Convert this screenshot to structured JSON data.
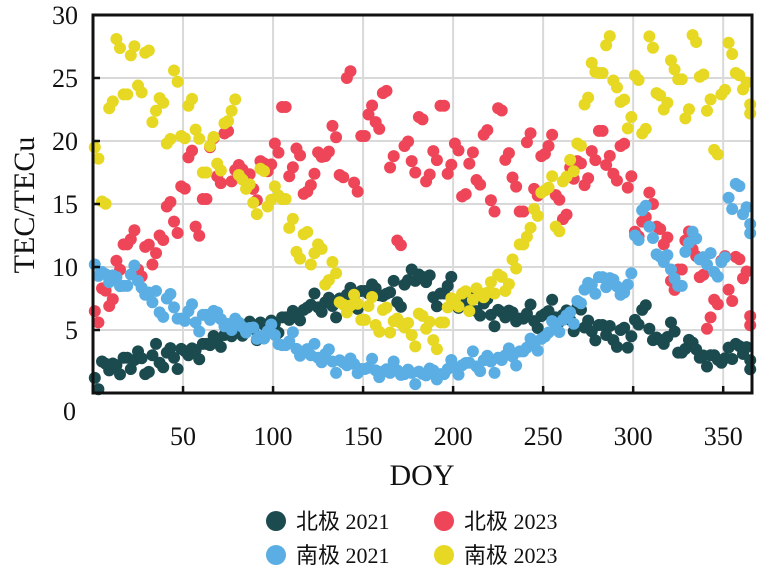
{
  "chart_data": {
    "type": "scatter",
    "title": "",
    "xlabel": "DOY",
    "ylabel": "TEC/TECu",
    "xlim": [
      0,
      366
    ],
    "ylim": [
      0,
      30
    ],
    "xticks": [
      50,
      100,
      150,
      200,
      250,
      300,
      350
    ],
    "yticks": [
      0,
      5,
      10,
      15,
      20,
      25,
      30
    ],
    "grid": true,
    "legend_position": "bottom",
    "x": [
      1,
      5,
      9,
      13,
      17,
      21,
      25,
      29,
      33,
      37,
      41,
      45,
      49,
      53,
      57,
      61,
      65,
      69,
      73,
      77,
      81,
      85,
      89,
      93,
      97,
      101,
      105,
      109,
      113,
      117,
      121,
      125,
      129,
      133,
      137,
      141,
      145,
      149,
      153,
      157,
      161,
      165,
      169,
      173,
      177,
      181,
      185,
      189,
      193,
      197,
      201,
      205,
      209,
      213,
      217,
      221,
      225,
      229,
      233,
      237,
      241,
      245,
      249,
      253,
      257,
      261,
      265,
      269,
      273,
      277,
      281,
      285,
      289,
      293,
      297,
      301,
      305,
      309,
      313,
      317,
      321,
      325,
      329,
      333,
      337,
      341,
      345,
      349,
      353,
      357,
      361,
      365
    ],
    "series": [
      {
        "name": "北极 2021",
        "color": "#1b4a4f",
        "values": [
          1.2,
          2.5,
          1.8,
          2.2,
          2.8,
          1.9,
          3.3,
          1.5,
          3.0,
          2.4,
          3.2,
          2.8,
          3.5,
          3.0,
          3.4,
          3.9,
          3.8,
          4.2,
          4.6,
          4.5,
          4.9,
          5.3,
          5.1,
          5.6,
          5.2,
          5.5,
          6.0,
          5.8,
          6.3,
          6.6,
          7.0,
          6.8,
          7.2,
          6.9,
          7.5,
          7.8,
          7.4,
          8.1,
          7.9,
          8.3,
          7.7,
          8.0,
          7.2,
          8.6,
          9.8,
          9.4,
          8.8,
          7.6,
          7.9,
          8.5,
          7.3,
          7.0,
          6.8,
          6.5,
          7.1,
          6.2,
          6.6,
          6.0,
          6.4,
          5.9,
          6.3,
          5.7,
          6.1,
          6.5,
          6.0,
          6.2,
          5.8,
          6.8,
          5.2,
          4.9,
          5.4,
          4.6,
          4.2,
          5.0,
          3.6,
          5.8,
          6.6,
          5.1,
          4.4,
          3.9,
          5.6,
          3.2,
          3.5,
          4.0,
          2.8,
          2.1,
          3.0,
          2.4,
          3.6,
          3.9,
          3.1,
          2.6
        ]
      },
      {
        "name": "北极 2023",
        "color": "#ee4658",
        "values": [
          6.5,
          8.3,
          6.9,
          10.5,
          11.8,
          12.2,
          9.8,
          11.6,
          10.2,
          12.5,
          14.8,
          13.6,
          16.4,
          18.7,
          13.2,
          15.4,
          19.5,
          17.2,
          20.6,
          16.8,
          18.1,
          17.0,
          16.2,
          18.4,
          17.6,
          19.8,
          22.7,
          17.2,
          19.4,
          15.8,
          16.5,
          19.1,
          18.8,
          21.2,
          17.3,
          25.0,
          16.7,
          20.4,
          22.1,
          21.5,
          23.8,
          17.9,
          12.1,
          19.6,
          18.4,
          21.9,
          16.8,
          19.2,
          22.8,
          17.4,
          19.8,
          15.6,
          18.2,
          16.9,
          20.5,
          15.3,
          22.6,
          18.5,
          17.1,
          14.4,
          19.9,
          16.2,
          18.8,
          19.6,
          15.7,
          13.8,
          17.9,
          18.4,
          16.5,
          19.2,
          20.8,
          18.1,
          17.4,
          19.6,
          16.3,
          12.8,
          13.6,
          15.9,
          13.2,
          11.8,
          8.9,
          9.8,
          12.1,
          11.4,
          9.2,
          5.1,
          7.4,
          10.5,
          8.2,
          10.8,
          9.1,
          6.1
        ]
      },
      {
        "name": "南极 2021",
        "color": "#5aaee3",
        "values": [
          10.2,
          9.6,
          8.8,
          9.2,
          8.5,
          9.4,
          8.9,
          7.8,
          7.2,
          6.4,
          7.5,
          6.8,
          5.9,
          6.5,
          5.6,
          6.2,
          5.8,
          6.4,
          5.3,
          5.0,
          5.6,
          4.8,
          5.2,
          4.5,
          4.9,
          4.6,
          3.8,
          4.1,
          3.5,
          3.3,
          3.0,
          2.8,
          3.1,
          2.5,
          2.6,
          2.2,
          2.3,
          1.9,
          2.0,
          1.8,
          1.7,
          1.6,
          1.8,
          1.5,
          1.6,
          1.7,
          1.4,
          1.8,
          1.5,
          1.9,
          2.0,
          2.2,
          2.4,
          2.1,
          2.6,
          2.5,
          2.8,
          3.0,
          2.9,
          3.3,
          3.6,
          3.9,
          4.3,
          4.8,
          5.2,
          5.8,
          6.4,
          7.3,
          8.2,
          8.6,
          9.2,
          8.4,
          9.0,
          7.8,
          8.6,
          12.5,
          14.5,
          13.2,
          11.0,
          10.4,
          9.8,
          8.5,
          11.2,
          12.8,
          10.6,
          10.2,
          9.6,
          10.4,
          15.5,
          16.6,
          14.2,
          13.4
        ]
      },
      {
        "name": "南极 2023",
        "color": "#e6d823",
        "values": [
          19.5,
          15.2,
          22.6,
          28.1,
          23.7,
          26.8,
          24.4,
          27.0,
          21.5,
          23.4,
          19.8,
          25.6,
          20.4,
          22.8,
          20.9,
          17.5,
          19.6,
          18.2,
          21.4,
          22.4,
          17.3,
          16.2,
          15.1,
          17.8,
          14.8,
          16.4,
          15.4,
          13.1,
          11.2,
          12.6,
          10.2,
          11.8,
          8.6,
          10.4,
          7.2,
          6.4,
          7.8,
          5.8,
          6.9,
          5.4,
          6.6,
          4.8,
          5.9,
          5.2,
          4.6,
          6.3,
          5.1,
          4.2,
          5.6,
          6.8,
          7.4,
          7.9,
          6.5,
          8.3,
          7.6,
          8.8,
          9.4,
          8.1,
          10.6,
          11.8,
          12.4,
          14.6,
          15.9,
          16.3,
          13.2,
          16.8,
          18.5,
          19.8,
          22.9,
          26.2,
          25.4,
          27.6,
          24.8,
          23.1,
          21.0,
          25.2,
          20.6,
          28.3,
          23.8,
          22.5,
          26.4,
          24.9,
          21.8,
          28.4,
          25.1,
          22.4,
          19.3,
          23.7,
          27.8,
          25.4,
          24.1,
          22.9
        ]
      }
    ],
    "legend_order": [
      0,
      1,
      2,
      3
    ]
  }
}
